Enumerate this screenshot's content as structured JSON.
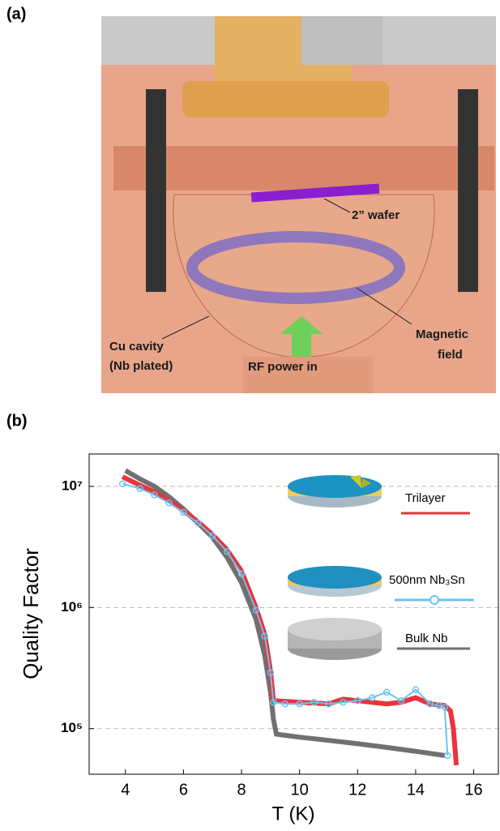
{
  "figure_a": {
    "label": "(a)",
    "wafer": "2” wafer",
    "cavity": [
      "Cu cavity",
      "(Nb plated)"
    ],
    "field": [
      "Magnetic",
      "field"
    ],
    "rf": "RF power in"
  },
  "chart_data": {
    "type": "line",
    "label": "(b)",
    "xlabel": "T (K)",
    "ylabel": "Quality Factor",
    "log_y": true,
    "xlim": [
      2.75,
      16.85
    ],
    "xticks": [
      4,
      6,
      8,
      10,
      12,
      14,
      16
    ],
    "ylim": [
      42000,
      18500000
    ],
    "yticks": [
      {
        "value": 100000,
        "label": "10⁵"
      },
      {
        "value": 1000000,
        "label": "10⁶"
      },
      {
        "value": 10000000,
        "label": "10⁷"
      }
    ],
    "grid": true,
    "series": [
      {
        "name": "Bulk Nb",
        "color": "#707070",
        "marker": "none",
        "x": [
          4.0,
          4.5,
          5.0,
          5.5,
          6.0,
          6.5,
          7.0,
          7.5,
          8.0,
          8.5,
          8.8,
          9.0,
          9.1,
          9.2,
          10.0,
          11.0,
          12.0,
          13.0,
          14.0,
          15.0
        ],
        "values": [
          13500000,
          11500000,
          10000000,
          8200000,
          6500000,
          5000000,
          3800000,
          2600000,
          1600000,
          800000,
          400000,
          200000,
          120000,
          90000,
          85000,
          80000,
          75000,
          70000,
          65000,
          60000
        ]
      },
      {
        "name": "Trilayer",
        "color": "#e8343a",
        "marker": "none",
        "x": [
          3.9,
          4.5,
          5.0,
          5.5,
          6.0,
          6.5,
          7.0,
          7.5,
          8.0,
          8.5,
          8.8,
          9.0,
          9.1,
          10.0,
          11.0,
          11.5,
          12.0,
          13.0,
          13.5,
          14.0,
          14.5,
          15.0,
          15.2,
          15.3,
          15.4
        ],
        "values": [
          12000000,
          10200000,
          9000000,
          7600000,
          6300000,
          5100000,
          4000000,
          3000000,
          2000000,
          1000000,
          600000,
          300000,
          170000,
          165000,
          160000,
          175000,
          170000,
          160000,
          165000,
          180000,
          160000,
          155000,
          140000,
          100000,
          50000
        ]
      },
      {
        "name": "500nm Nb₃Sn",
        "color": "#6ec3ee",
        "marker": "circle",
        "x": [
          3.9,
          4.5,
          5.0,
          5.5,
          6.0,
          6.5,
          7.0,
          7.5,
          8.0,
          8.5,
          8.8,
          9.0,
          9.1,
          9.5,
          10.0,
          10.5,
          11.0,
          11.5,
          12.0,
          12.5,
          13.0,
          13.5,
          14.0,
          14.5,
          14.8,
          15.0,
          15.1
        ],
        "values": [
          10500000,
          9600000,
          8500000,
          7300000,
          6100000,
          5000000,
          3900000,
          2900000,
          1900000,
          950000,
          580000,
          290000,
          165000,
          160000,
          160000,
          165000,
          160000,
          165000,
          170000,
          180000,
          200000,
          170000,
          210000,
          160000,
          155000,
          150000,
          60000
        ]
      }
    ]
  }
}
